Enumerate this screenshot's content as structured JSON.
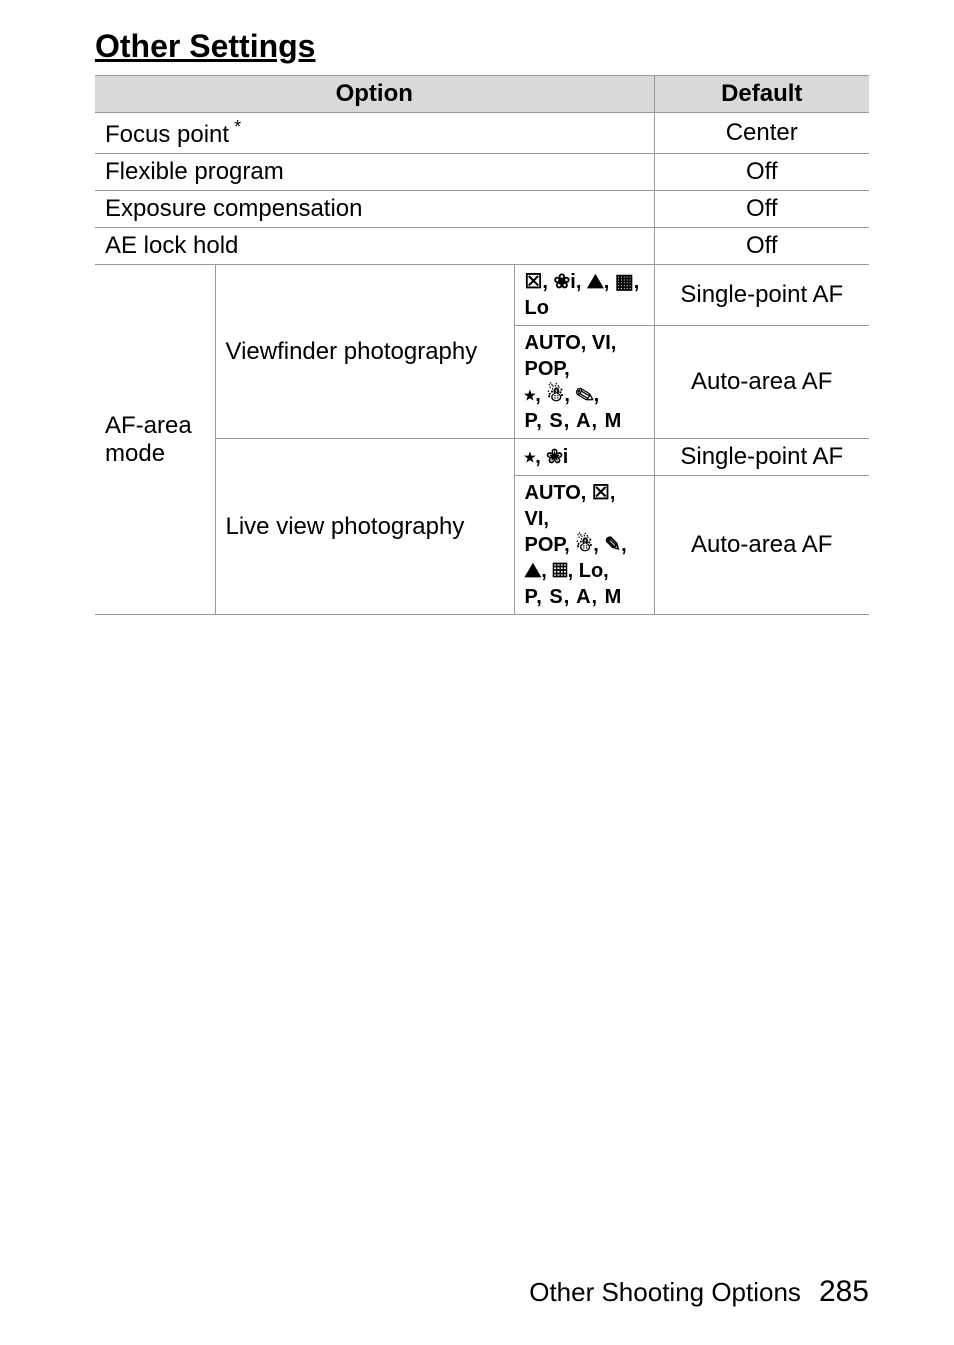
{
  "section_title": "Other Settings",
  "columns": {
    "option": "Option",
    "default": "Default"
  },
  "simple_rows": [
    {
      "option": "Focus point",
      "has_star": true,
      "star": "*",
      "default": "Center"
    },
    {
      "option": "Flexible program",
      "has_star": false,
      "default": "Off"
    },
    {
      "option": "Exposure compensation",
      "has_star": false,
      "default": "Off"
    },
    {
      "option": "AE lock hold",
      "has_star": false,
      "default": "Off"
    }
  ],
  "af_area": {
    "label": "AF-area mode",
    "groups": [
      {
        "sub_label": "Viewfinder photography",
        "rows": [
          {
            "modes_html": "line1a",
            "default": "Single-point AF"
          },
          {
            "modes_html": "line1b",
            "default": "Auto-area AF"
          }
        ]
      },
      {
        "sub_label": "Live view photography",
        "rows": [
          {
            "modes_html": "line2a",
            "default": "Single-point AF"
          },
          {
            "modes_html": "line2b",
            "default": "Auto-area AF"
          }
        ]
      }
    ]
  },
  "mode_strings": {
    "line1a": "☒, ❀i, ⛰, ▦, Lo",
    "line1b_1": "AUTO, VI, POP,",
    "line1b_2": "⭒, ☃, ✎,",
    "line1b_3": "P, S, A, M",
    "line2a": "⭒, ❀i",
    "line2b_1": "AUTO, ☒, VI,",
    "line2b_2": "POP, ☃, ✎,",
    "line2b_3": "⛰, ▦, Lo,",
    "line2b_4": "P, S, A, M"
  },
  "footer": {
    "chapter": "Other Shooting Options",
    "page": "285"
  },
  "style": {
    "header_bg": "#d9d9d9",
    "border_color": "#9a9a9a",
    "title_fontsize": 32,
    "body_fontsize": 24,
    "footer_fontsize": 26,
    "pagenum_fontsize": 30
  }
}
